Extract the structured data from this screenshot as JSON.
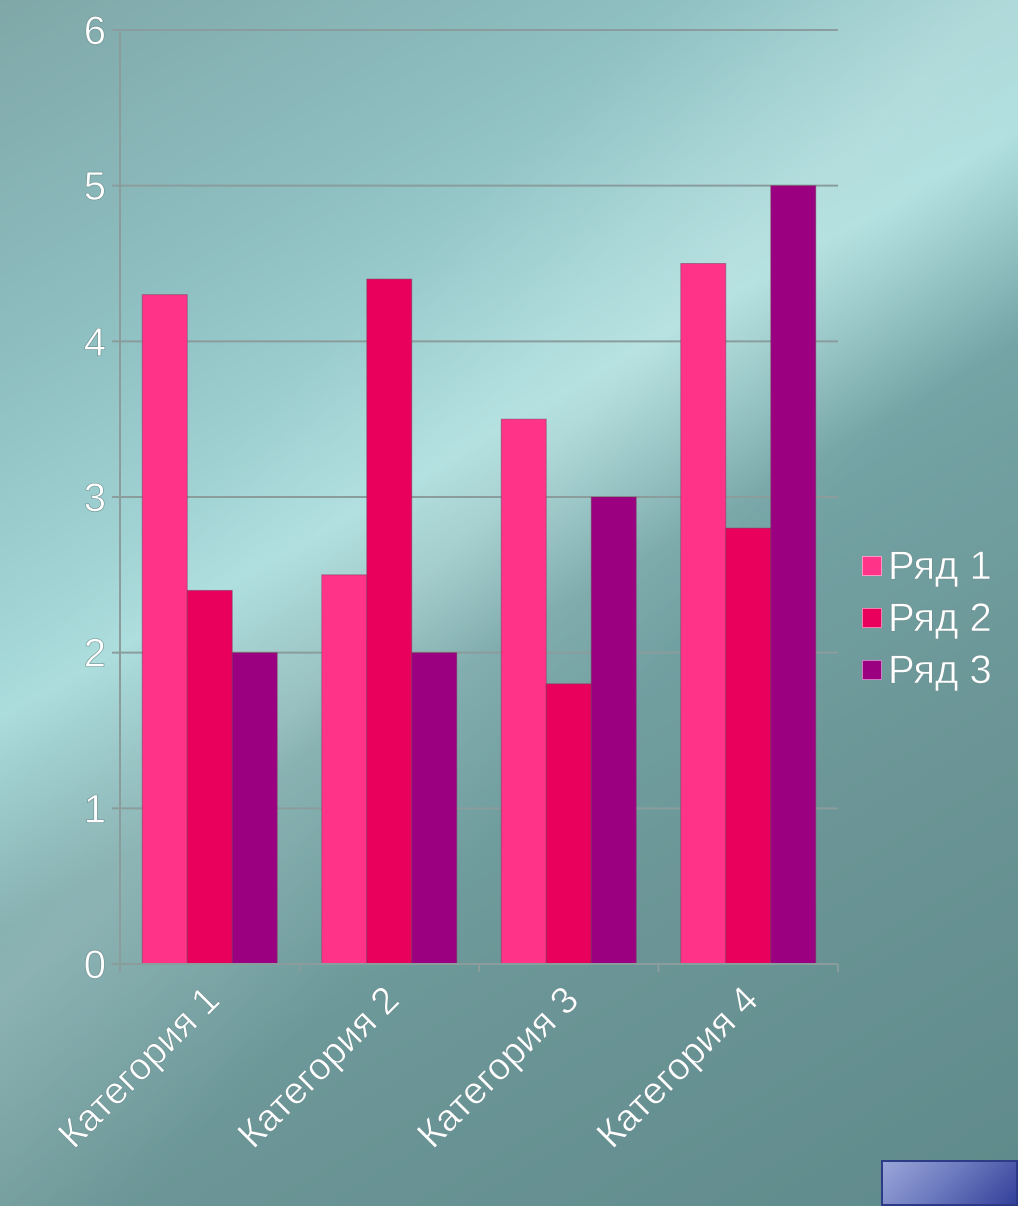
{
  "chart_data": {
    "type": "bar",
    "categories": [
      "Категория 1",
      "Категория 2",
      "Категория 3",
      "Категория 4"
    ],
    "series": [
      {
        "name": "Ряд 1",
        "color": "#ff3388",
        "values": [
          4.3,
          2.5,
          3.5,
          4.5
        ]
      },
      {
        "name": "Ряд 2",
        "color": "#e8005c",
        "values": [
          2.4,
          4.4,
          1.8,
          2.8
        ]
      },
      {
        "name": "Ряд 3",
        "color": "#9a0080",
        "values": [
          2,
          2,
          3,
          5
        ]
      }
    ],
    "ylim": [
      0,
      6
    ],
    "yticks": [
      "0",
      "1",
      "2",
      "3",
      "4",
      "5",
      "6"
    ],
    "grid": true,
    "legend_position": "right"
  },
  "nav": {
    "color": "#5563b0"
  }
}
